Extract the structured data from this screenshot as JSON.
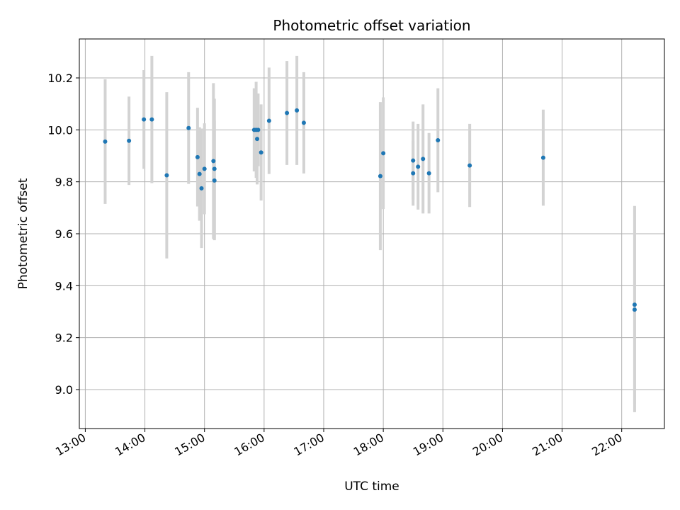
{
  "chart_data": {
    "type": "scatter",
    "title": "Photometric offset variation",
    "xlabel": "UTC time",
    "ylabel": "Photometric offset",
    "grid": true,
    "x_tick_labels": [
      "13:00",
      "14:00",
      "15:00",
      "16:00",
      "17:00",
      "18:00",
      "19:00",
      "20:00",
      "21:00",
      "22:00"
    ],
    "x_tick_hours": [
      13,
      14,
      15,
      16,
      17,
      18,
      19,
      20,
      21,
      22
    ],
    "y_ticks": [
      9.0,
      9.2,
      9.4,
      9.6,
      9.8,
      10.0,
      10.2
    ],
    "y_tick_labels": [
      "9.0",
      "9.2",
      "9.4",
      "9.6",
      "9.8",
      "10.0",
      "10.2"
    ],
    "xlim": [
      "12:54",
      "22:43"
    ],
    "ylim": [
      8.85,
      10.35
    ],
    "colors": {
      "point": "#1f77b4",
      "errorbar": "#d3d3d3",
      "grid": "#b0b0b0"
    },
    "points": [
      {
        "time": "13:20",
        "y": 9.955,
        "err": 0.24
      },
      {
        "time": "13:44",
        "y": 9.958,
        "err": 0.17
      },
      {
        "time": "13:59",
        "y": 10.04,
        "err": 0.19
      },
      {
        "time": "14:07",
        "y": 10.04,
        "err": 0.245
      },
      {
        "time": "14:22",
        "y": 9.825,
        "err": 0.32
      },
      {
        "time": "14:44",
        "y": 10.007,
        "err": 0.215
      },
      {
        "time": "14:53",
        "y": 9.895,
        "err": 0.19
      },
      {
        "time": "14:55",
        "y": 9.83,
        "err": 0.18
      },
      {
        "time": "14:57",
        "y": 9.775,
        "err": 0.23
      },
      {
        "time": "15:00",
        "y": 9.85,
        "err": 0.175
      },
      {
        "time": "15:09",
        "y": 9.88,
        "err": 0.3
      },
      {
        "time": "15:10",
        "y": 9.85,
        "err": 0.27
      },
      {
        "time": "15:10",
        "y": 9.805,
        "err": 0.23
      },
      {
        "time": "15:50",
        "y": 10.0,
        "err": 0.16
      },
      {
        "time": "15:52",
        "y": 10.0,
        "err": 0.185
      },
      {
        "time": "15:53",
        "y": 9.965,
        "err": 0.175
      },
      {
        "time": "15:54",
        "y": 10.0,
        "err": 0.14
      },
      {
        "time": "15:57",
        "y": 9.913,
        "err": 0.185
      },
      {
        "time": "16:05",
        "y": 10.035,
        "err": 0.205
      },
      {
        "time": "16:23",
        "y": 10.065,
        "err": 0.2
      },
      {
        "time": "16:33",
        "y": 10.075,
        "err": 0.21
      },
      {
        "time": "16:40",
        "y": 10.027,
        "err": 0.195
      },
      {
        "time": "17:57",
        "y": 9.822,
        "err": 0.285
      },
      {
        "time": "18:00",
        "y": 9.91,
        "err": 0.215
      },
      {
        "time": "18:30",
        "y": 9.882,
        "err": 0.15
      },
      {
        "time": "18:30",
        "y": 9.833,
        "err": 0.125
      },
      {
        "time": "18:35",
        "y": 9.858,
        "err": 0.165
      },
      {
        "time": "18:40",
        "y": 9.888,
        "err": 0.21
      },
      {
        "time": "18:46",
        "y": 9.833,
        "err": 0.155
      },
      {
        "time": "18:55",
        "y": 9.96,
        "err": 0.2
      },
      {
        "time": "19:27",
        "y": 9.863,
        "err": 0.16
      },
      {
        "time": "20:41",
        "y": 9.893,
        "err": 0.185
      },
      {
        "time": "22:13",
        "y": 9.327,
        "err": 0.38
      },
      {
        "time": "22:13",
        "y": 9.308,
        "err": 0.395
      }
    ]
  }
}
